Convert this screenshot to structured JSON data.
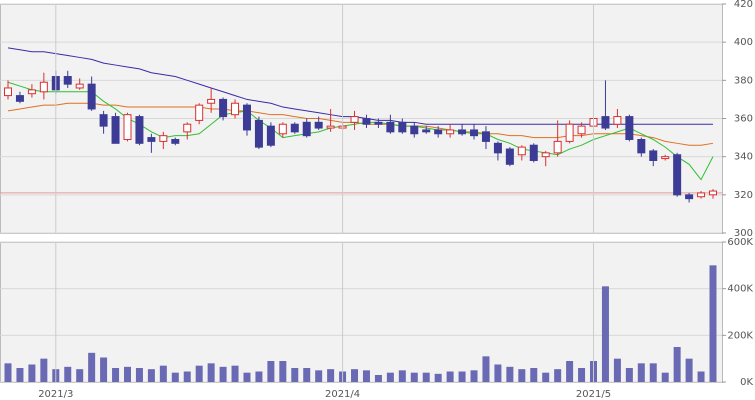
{
  "chart_data": [
    {
      "type": "candlestick",
      "ylim": [
        300,
        420
      ],
      "yticks": [
        300,
        320,
        340,
        360,
        380,
        400,
        420
      ],
      "up_color": "#d83030",
      "down_color": "#3c3c96",
      "hline": 321,
      "hline_color": "#e89a9a",
      "open": [
        372,
        372,
        373,
        374,
        382,
        382,
        376,
        378,
        362,
        361,
        349,
        361,
        350,
        348,
        349,
        353,
        359,
        368,
        370,
        362,
        367,
        359,
        356,
        352,
        357,
        358,
        358,
        355,
        355,
        358,
        360,
        358,
        358,
        358,
        356,
        354,
        354,
        352,
        354,
        354,
        353,
        347,
        344,
        341,
        346,
        340,
        342,
        348,
        352,
        356,
        361,
        357,
        361,
        349,
        343,
        339,
        341,
        320,
        319,
        320
      ],
      "high": [
        380,
        374,
        378,
        384,
        385,
        385,
        381,
        382,
        364,
        363,
        363,
        362,
        352,
        353,
        350,
        358,
        368,
        376,
        371,
        370,
        368,
        361,
        358,
        358,
        358,
        360,
        361,
        365,
        358,
        364,
        362,
        360,
        362,
        360,
        358,
        356,
        356,
        357,
        357,
        357,
        356,
        348,
        345,
        346,
        347,
        343,
        359,
        359,
        358,
        362,
        380,
        365,
        362,
        350,
        344,
        341,
        342,
        321,
        322,
        323
      ],
      "low": [
        370,
        368,
        371,
        370,
        373,
        376,
        375,
        364,
        352,
        347,
        348,
        346,
        342,
        344,
        346,
        349,
        357,
        363,
        359,
        360,
        351,
        344,
        345,
        350,
        352,
        350,
        354,
        353,
        354,
        354,
        355,
        355,
        352,
        352,
        350,
        352,
        350,
        350,
        351,
        349,
        344,
        338,
        335,
        338,
        337,
        335,
        340,
        347,
        350,
        355,
        354,
        355,
        348,
        340,
        335,
        338,
        319,
        316,
        318,
        318
      ],
      "close": [
        376,
        369,
        375,
        379,
        375,
        378,
        378,
        365,
        356,
        347,
        362,
        347,
        348,
        351,
        347,
        357,
        367,
        370,
        361,
        368,
        354,
        345,
        346,
        357,
        353,
        351,
        355,
        356,
        356,
        361,
        357,
        357,
        353,
        353,
        352,
        353,
        352,
        354,
        352,
        351,
        348,
        342,
        336,
        345,
        338,
        342,
        348,
        357,
        356,
        360,
        355,
        361,
        349,
        342,
        338,
        340,
        320,
        318,
        321,
        322
      ],
      "series": [
        {
          "color": "#3a2aa8",
          "values": [
            397,
            396,
            395,
            395,
            394,
            393,
            392,
            391,
            389,
            388,
            387,
            386,
            384,
            383,
            382,
            380,
            378,
            376,
            374,
            372,
            370,
            369,
            368,
            366,
            365,
            364,
            363,
            362,
            361,
            361,
            360,
            359,
            359,
            358,
            358,
            357,
            357,
            357,
            357,
            357,
            357,
            357,
            357,
            357,
            357,
            357,
            357,
            357,
            357,
            357,
            357,
            357,
            357,
            357,
            357,
            357,
            357,
            357,
            357,
            357
          ]
        },
        {
          "color": "#e07020",
          "values": [
            364,
            365,
            366,
            367,
            367,
            368,
            368,
            368,
            367,
            367,
            366,
            366,
            366,
            366,
            366,
            366,
            366,
            365,
            365,
            364,
            364,
            363,
            362,
            362,
            361,
            360,
            360,
            359,
            358,
            358,
            357,
            357,
            357,
            356,
            356,
            356,
            355,
            354,
            353,
            353,
            352,
            352,
            351,
            351,
            350,
            350,
            350,
            351,
            351,
            352,
            352,
            352,
            352,
            351,
            350,
            348,
            347,
            346,
            346,
            347
          ]
        },
        {
          "color": "#30c030",
          "values": [
            379,
            377,
            375,
            374,
            374,
            374,
            374,
            374,
            369,
            365,
            360,
            357,
            353,
            350,
            351,
            351,
            352,
            357,
            362,
            363,
            364,
            359,
            355,
            350,
            351,
            352,
            353,
            355,
            356,
            357,
            358,
            358,
            357,
            356,
            356,
            355,
            354,
            354,
            353,
            352,
            352,
            349,
            347,
            344,
            343,
            342,
            341,
            344,
            346,
            349,
            351,
            353,
            355,
            352,
            349,
            345,
            340,
            336,
            328,
            340
          ]
        }
      ]
    },
    {
      "type": "bar",
      "color": "#6a6ab4",
      "ylim": [
        0,
        600000
      ],
      "yticks": [
        {
          "value": 0,
          "label": "0K"
        },
        {
          "value": 200000,
          "label": "200K"
        },
        {
          "value": 400000,
          "label": "400K"
        },
        {
          "value": 600000,
          "label": "600K"
        }
      ],
      "categories": [
        null,
        null,
        null,
        null,
        "2021/3",
        null,
        null,
        null,
        null,
        null,
        null,
        null,
        null,
        null,
        null,
        null,
        null,
        null,
        null,
        null,
        null,
        null,
        null,
        null,
        null,
        null,
        null,
        null,
        "2021/4",
        null,
        null,
        null,
        null,
        null,
        null,
        null,
        null,
        null,
        null,
        null,
        null,
        null,
        null,
        null,
        null,
        null,
        null,
        null,
        null,
        "2021/5",
        null,
        null,
        null,
        null,
        null,
        null,
        null,
        null,
        null,
        null
      ],
      "values": [
        80000,
        60000,
        75000,
        100000,
        55000,
        65000,
        55000,
        125000,
        105000,
        60000,
        65000,
        60000,
        55000,
        70000,
        40000,
        45000,
        70000,
        80000,
        65000,
        70000,
        40000,
        45000,
        90000,
        90000,
        60000,
        60000,
        50000,
        55000,
        45000,
        55000,
        50000,
        30000,
        40000,
        50000,
        40000,
        40000,
        35000,
        45000,
        45000,
        50000,
        110000,
        75000,
        65000,
        55000,
        60000,
        40000,
        55000,
        90000,
        60000,
        90000,
        410000,
        100000,
        60000,
        80000,
        80000,
        40000,
        150000,
        100000,
        45000,
        500000
      ]
    }
  ]
}
